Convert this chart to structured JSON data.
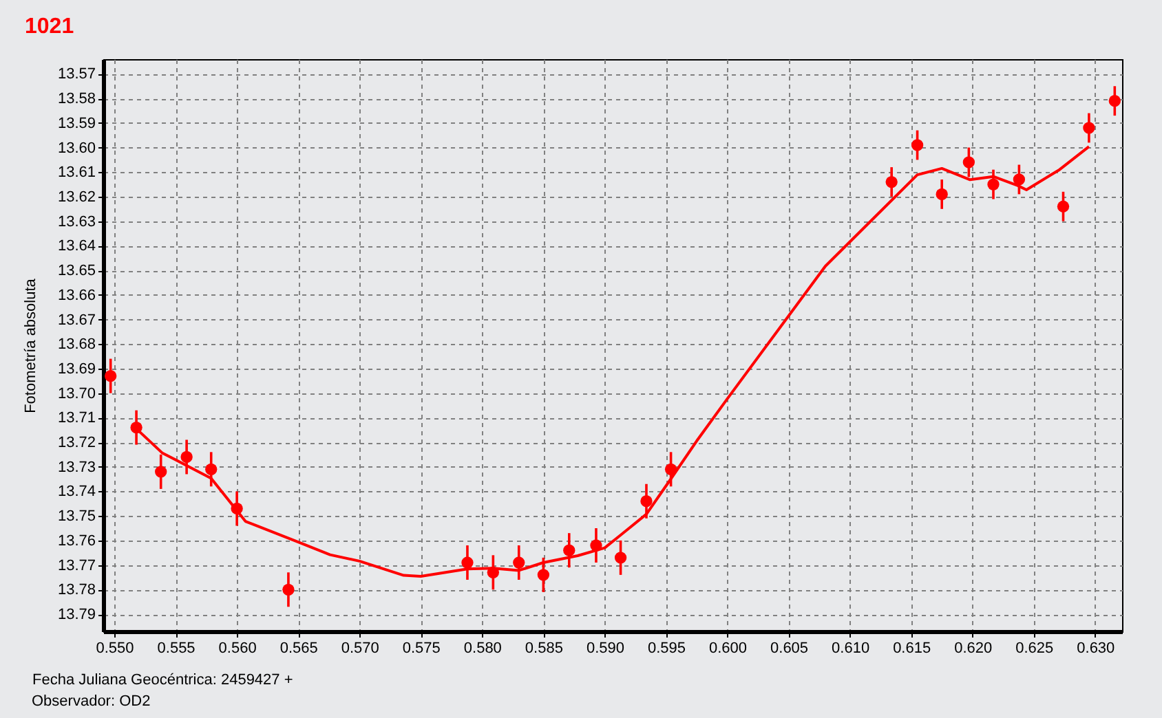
{
  "chart_data": {
    "type": "scatter",
    "title": "1021",
    "xlabel": "Fecha Juliana Geocéntrica: 2459427 +",
    "ylabel": "Fotometría absoluta",
    "annotations": [
      "Observador: OD2"
    ],
    "xlim": [
      0.5491,
      0.6322
    ],
    "ylim": [
      13.797,
      13.564
    ],
    "xticks": [
      {
        "value": 0.55,
        "label": "0.550"
      },
      0.555,
      {
        "value": 0.56,
        "label": "0.560"
      },
      0.565,
      {
        "value": 0.57,
        "label": "0.570"
      },
      0.575,
      {
        "value": 0.58,
        "label": "0.580"
      },
      0.585,
      {
        "value": 0.59,
        "label": "0.590"
      },
      0.595,
      {
        "value": 0.6,
        "label": "0.600"
      },
      0.605,
      {
        "value": 0.61,
        "label": "0.610"
      },
      0.615,
      {
        "value": 0.62,
        "label": "0.620"
      },
      0.625,
      {
        "value": 0.63,
        "label": "0.630"
      }
    ],
    "yticks": [
      13.57,
      13.58,
      13.59,
      {
        "value": 13.6,
        "label": "13.60"
      },
      13.61,
      13.62,
      13.63,
      13.64,
      13.65,
      13.66,
      13.67,
      13.68,
      13.69,
      {
        "value": 13.7,
        "label": "13.70"
      },
      13.71,
      13.72,
      13.73,
      13.74,
      13.75,
      13.76,
      13.77,
      13.78,
      13.79
    ],
    "grid": true,
    "series": [
      {
        "type": "scatter",
        "color": "#ff0000",
        "marker": "circle",
        "x": [
          0.5497,
          0.5518,
          0.5538,
          0.5559,
          0.5579,
          0.56,
          0.5642,
          0.5788,
          0.5809,
          0.583,
          0.585,
          0.5871,
          0.5893,
          0.5913,
          0.5934,
          0.5954,
          0.6134,
          0.6155,
          0.6175,
          0.6197,
          0.6217,
          0.6238,
          0.6274,
          0.6295,
          0.6316
        ],
        "values": [
          13.693,
          13.714,
          13.732,
          13.726,
          13.731,
          13.747,
          13.78,
          13.769,
          13.773,
          13.769,
          13.774,
          13.764,
          13.762,
          13.767,
          13.744,
          13.731,
          13.614,
          13.599,
          13.619,
          13.606,
          13.615,
          13.613,
          13.624,
          13.592,
          13.581
        ],
        "errors": [
          0.007,
          0.007,
          0.007,
          0.007,
          0.007,
          0.007,
          0.007,
          0.007,
          0.007,
          0.007,
          0.007,
          0.007,
          0.007,
          0.007,
          0.007,
          0.007,
          0.006,
          0.006,
          0.006,
          0.006,
          0.006,
          0.006,
          0.006,
          0.006,
          0.006
        ]
      },
      {
        "type": "line",
        "color": "#ff0000",
        "line_style": "solid",
        "x": [
          0.5518,
          0.5539,
          0.5579,
          0.5607,
          0.565,
          0.5676,
          0.57,
          0.5736,
          0.575,
          0.5788,
          0.5809,
          0.583,
          0.585,
          0.5878,
          0.59,
          0.5913,
          0.5934,
          0.5954,
          0.5975,
          0.6,
          0.608,
          0.6155,
          0.6175,
          0.6198,
          0.6217,
          0.6237,
          0.6244,
          0.6271,
          0.6295
        ],
        "values": [
          13.7145,
          13.7243,
          13.7347,
          13.7522,
          13.7606,
          13.7658,
          13.7684,
          13.7742,
          13.7746,
          13.7716,
          13.7713,
          13.7722,
          13.769,
          13.7662,
          13.763,
          13.7578,
          13.7493,
          13.7349,
          13.7195,
          13.7023,
          13.6483,
          13.6111,
          13.6085,
          13.6131,
          13.6118,
          13.6155,
          13.6172,
          13.609,
          13.5996
        ]
      }
    ]
  }
}
